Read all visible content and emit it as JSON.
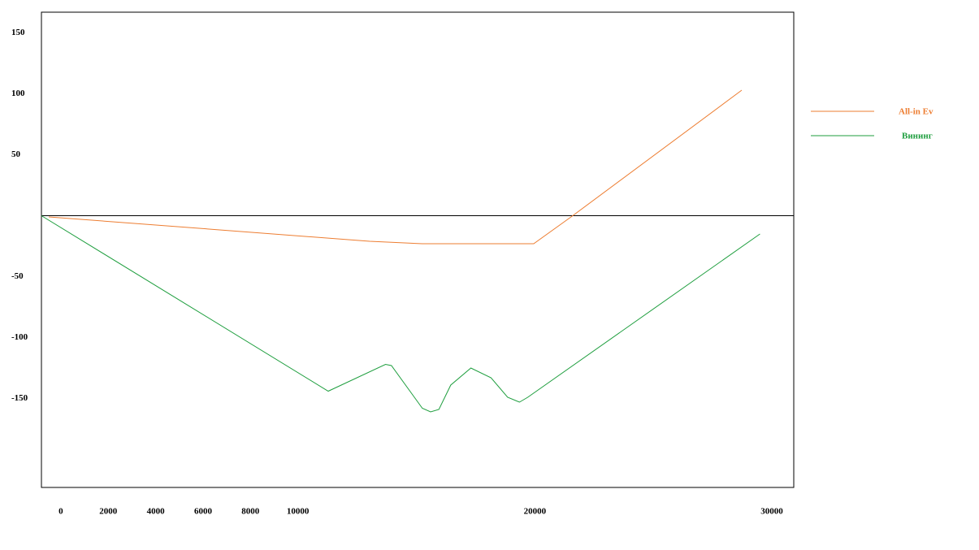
{
  "chart_data": {
    "type": "line",
    "xlim": [
      -820,
      30925
    ],
    "ylim": [
      -223,
      167
    ],
    "xticks": [
      0,
      2000,
      4000,
      6000,
      8000,
      10000,
      20000,
      30000
    ],
    "yticks": [
      150,
      100,
      50,
      -50,
      -100,
      -150
    ],
    "legend": "right",
    "series": [
      {
        "name": "All-in Ev",
        "color": "#ed7d31",
        "x": [
          -510,
          13030,
          15250,
          19950,
          21530,
          28730
        ],
        "values": [
          -1,
          -21,
          -23,
          -23,
          -1,
          103
        ]
      },
      {
        "name": "Вининг",
        "color": "#1e9e3e",
        "x": [
          -820,
          11280,
          13700,
          13950,
          15250,
          15600,
          15950,
          16450,
          17300,
          18150,
          18850,
          19350,
          19700,
          29500
        ],
        "values": [
          0,
          -144,
          -122,
          -123,
          -158,
          -161,
          -159,
          -139,
          -125,
          -133,
          -149,
          -153,
          -149,
          -15
        ]
      }
    ]
  }
}
